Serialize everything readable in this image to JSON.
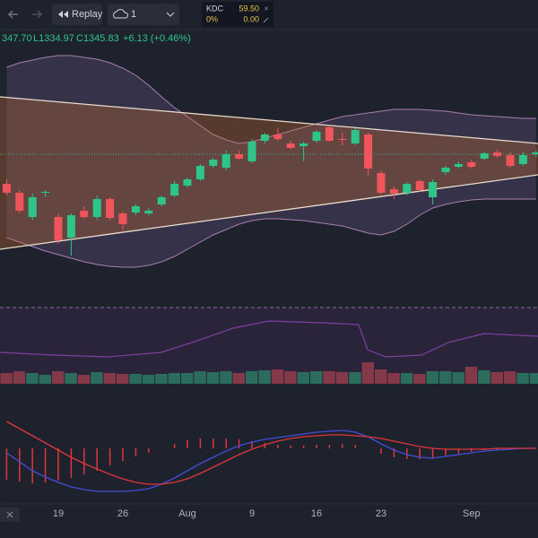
{
  "toolbar": {
    "replay": "Replay",
    "interval": "1"
  },
  "ticker": {
    "symbol": "KDC",
    "price": "59.50",
    "change_pct": "0%",
    "change": "0.00",
    "close": "×"
  },
  "legend": {
    "open": "347.70",
    "low": "L1334.97",
    "close": "C1345.83",
    "change": "+6.13 (+0.46%)"
  },
  "chart_data": {
    "type": "candlestick",
    "categories": [
      null,
      null,
      null,
      null,
      "19",
      null,
      null,
      null,
      null,
      "26",
      null,
      null,
      null,
      null,
      "Aug",
      null,
      null,
      null,
      null,
      "9",
      null,
      null,
      null,
      null,
      "16",
      null,
      null,
      null,
      null,
      "23",
      null,
      null,
      null,
      null,
      null,
      null,
      "Sep",
      null,
      null,
      null,
      null,
      null
    ],
    "open": [
      1315,
      1305,
      1278,
      1305,
      1278,
      1255,
      1285,
      1278,
      1298,
      1282,
      1283,
      1282,
      1292,
      1302,
      1313,
      1320,
      1335,
      1333,
      1348,
      1340,
      1363,
      1370,
      1360,
      1357,
      1363,
      1378,
      1365,
      1360,
      1370,
      1327,
      1309,
      1305,
      1318,
      1300,
      1328,
      1334,
      1339,
      1343,
      1350,
      1347,
      1337,
      1348
    ],
    "high": [
      1320,
      1308,
      1304,
      1308,
      1282,
      1282,
      1290,
      1302,
      1300,
      1284,
      1293,
      1288,
      1302,
      1318,
      1322,
      1337,
      1344,
      1352,
      1352,
      1365,
      1372,
      1377,
      1363,
      1362,
      1375,
      1380,
      1372,
      1377,
      1372,
      1330,
      1312,
      1317,
      1320,
      1320,
      1335,
      1340,
      1342,
      1351,
      1353,
      1350,
      1350,
      1352
    ],
    "low": [
      1302,
      1282,
      1275,
      1300,
      1248,
      1235,
      1276,
      1275,
      1274,
      1264,
      1280,
      1280,
      1290,
      1300,
      1311,
      1318,
      1333,
      1330,
      1342,
      1338,
      1360,
      1363,
      1354,
      1340,
      1361,
      1362,
      1358,
      1358,
      1324,
      1303,
      1298,
      1302,
      1306,
      1292,
      1325,
      1332,
      1332,
      1342,
      1344,
      1333,
      1335,
      1345
    ],
    "close": [
      1305,
      1285,
      1300,
      1306,
      1252,
      1280,
      1278,
      1298,
      1277,
      1270,
      1290,
      1285,
      1300,
      1315,
      1320,
      1335,
      1342,
      1348,
      1343,
      1362,
      1370,
      1365,
      1355,
      1360,
      1373,
      1363,
      1364,
      1375,
      1332,
      1305,
      1304,
      1315,
      1308,
      1317,
      1333,
      1337,
      1334,
      1349,
      1346,
      1335,
      1347,
      1350
    ],
    "bands": [
      {
        "name": "upper",
        "color": "#a77fb0",
        "values": [
          1445,
          1450,
          1453,
          1456,
          1458,
          1458,
          1456,
          1454,
          1450,
          1444,
          1436,
          1425,
          1412,
          1400,
          1390,
          1380,
          1370,
          1364,
          1360,
          1362,
          1366,
          1370,
          1374,
          1378,
          1382,
          1386,
          1390,
          1392,
          1394,
          1396,
          1398,
          1398,
          1398,
          1397,
          1396,
          1394,
          1392,
          1391,
          1390,
          1389,
          1388,
          1388
        ]
      },
      {
        "name": "lower",
        "color": "#a77fb0",
        "values": [
          1255,
          1250,
          1245,
          1240,
          1236,
          1232,
          1228,
          1225,
          1223,
          1222,
          1222,
          1224,
          1228,
          1234,
          1242,
          1250,
          1258,
          1264,
          1270,
          1274,
          1276,
          1276,
          1275,
          1274,
          1272,
          1270,
          1268,
          1264,
          1260,
          1258,
          1262,
          1270,
          1280,
          1288,
          1292,
          1295,
          1297,
          1298,
          1298,
          1298,
          1298,
          1298
        ]
      }
    ],
    "ylim": [
      1190,
      1470
    ],
    "up_color": "#2ec58a",
    "down_color": "#f0555c",
    "volume": [
      12,
      14,
      12,
      10,
      14,
      12,
      10,
      13,
      12,
      11,
      11,
      10,
      11,
      12,
      12,
      14,
      13,
      14,
      12,
      14,
      15,
      16,
      14,
      13,
      14,
      14,
      13,
      13,
      24,
      16,
      12,
      12,
      11,
      14,
      14,
      13,
      19,
      15,
      13,
      14,
      12,
      12
    ],
    "vlim": [
      0,
      60
    ],
    "macd": {
      "lim": [
        -60,
        60
      ],
      "histogram": [
        -35,
        -37,
        -39,
        -38,
        -36,
        -33,
        -29,
        -25,
        -19,
        -14,
        -9,
        -5,
        0,
        5,
        9,
        11,
        11,
        11,
        10,
        8,
        6,
        4,
        3,
        3,
        4,
        4,
        5,
        4,
        0,
        -6,
        -10,
        -12,
        -12,
        -11,
        -8,
        -6,
        -4,
        -2,
        -2,
        -1,
        0,
        0
      ],
      "series": [
        {
          "name": "macd",
          "color": "#3f4fd8",
          "values": [
            -5,
            -15,
            -25,
            -32,
            -38,
            -43,
            -46,
            -48,
            -48,
            -48,
            -47,
            -45,
            -40,
            -33,
            -25,
            -17,
            -10,
            -3,
            3,
            7,
            10,
            12,
            14,
            16,
            18,
            19,
            20,
            18,
            13,
            5,
            -2,
            -7,
            -10,
            -11,
            -9,
            -7,
            -5,
            -3,
            -2,
            -1,
            0,
            0
          ]
        },
        {
          "name": "signal",
          "color": "#e0353c",
          "values": [
            30,
            22,
            14,
            6,
            -2,
            -10,
            -17,
            -23,
            -29,
            -34,
            -38,
            -40,
            -40,
            -38,
            -34,
            -28,
            -21,
            -14,
            -7,
            -1,
            4,
            8,
            11,
            13,
            14,
            15,
            15,
            14,
            13,
            11,
            8,
            5,
            2,
            0,
            -1,
            -1,
            -1,
            -1,
            0,
            0,
            0,
            0
          ]
        }
      ]
    }
  }
}
